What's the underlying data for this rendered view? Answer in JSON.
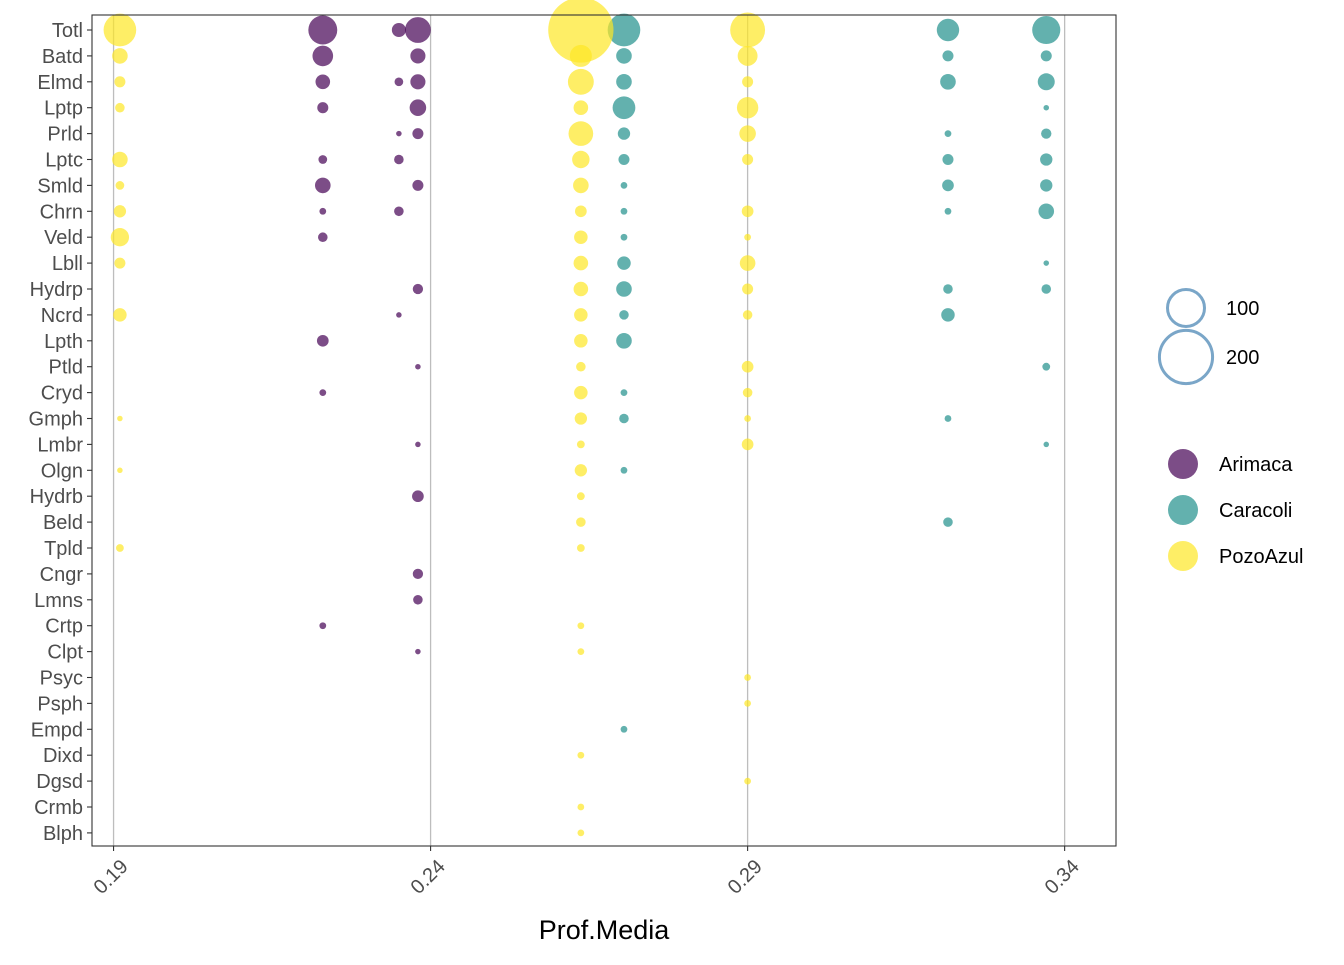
{
  "chart_data": {
    "type": "scatter",
    "title": "",
    "xlabel": "Prof.Media",
    "ylabel": "",
    "xlim": [
      0.1866,
      0.3481
    ],
    "x_ticks": [
      "0.19",
      "0.24",
      "0.29",
      "0.34"
    ],
    "x_tick_values": [
      0.19,
      0.24,
      0.29,
      0.34
    ],
    "grid": "major vertical only",
    "legend_position": "right",
    "categories": [
      "Totl",
      "Batd",
      "Elmd",
      "Lptp",
      "Prld",
      "Lptc",
      "Smld",
      "Chrn",
      "Veld",
      "Lbll",
      "Hydrp",
      "Ncrd",
      "Lpth",
      "Ptld",
      "Cryd",
      "Gmph",
      "Lmbr",
      "Olgn",
      "Hydrb",
      "Beld",
      "Tpld",
      "Cngr",
      "Lmns",
      "Crtp",
      "Clpt",
      "Psyc",
      "Psph",
      "Empd",
      "Dixd",
      "Dgsd",
      "Crmb",
      "Blph"
    ],
    "size_legend": {
      "labels": [
        "100",
        "200"
      ],
      "values": [
        100,
        200
      ],
      "color": "#7aa6c8"
    },
    "series": [
      {
        "name": "Arimaca",
        "color": "#440154",
        "points": [
          {
            "x": 0.223,
            "y": "Totl",
            "size": 55
          },
          {
            "x": 0.223,
            "y": "Batd",
            "size": 28
          },
          {
            "x": 0.223,
            "y": "Elmd",
            "size": 14
          },
          {
            "x": 0.223,
            "y": "Lptp",
            "size": 8
          },
          {
            "x": 0.223,
            "y": "Lptc",
            "size": 5
          },
          {
            "x": 0.223,
            "y": "Smld",
            "size": 16
          },
          {
            "x": 0.223,
            "y": "Chrn",
            "size": 3
          },
          {
            "x": 0.223,
            "y": "Veld",
            "size": 6
          },
          {
            "x": 0.223,
            "y": "Lpth",
            "size": 9
          },
          {
            "x": 0.223,
            "y": "Cryd",
            "size": 3
          },
          {
            "x": 0.223,
            "y": "Crtp",
            "size": 3
          },
          {
            "x": 0.235,
            "y": "Totl",
            "size": 13
          },
          {
            "x": 0.235,
            "y": "Elmd",
            "size": 5
          },
          {
            "x": 0.235,
            "y": "Prld",
            "size": 2
          },
          {
            "x": 0.235,
            "y": "Lptc",
            "size": 6
          },
          {
            "x": 0.235,
            "y": "Chrn",
            "size": 6
          },
          {
            "x": 0.235,
            "y": "Ncrd",
            "size": 2
          },
          {
            "x": 0.238,
            "y": "Totl",
            "size": 44
          },
          {
            "x": 0.238,
            "y": "Batd",
            "size": 15
          },
          {
            "x": 0.238,
            "y": "Elmd",
            "size": 15
          },
          {
            "x": 0.238,
            "y": "Lptp",
            "size": 18
          },
          {
            "x": 0.238,
            "y": "Prld",
            "size": 8
          },
          {
            "x": 0.238,
            "y": "Smld",
            "size": 8
          },
          {
            "x": 0.238,
            "y": "Hydrp",
            "size": 7
          },
          {
            "x": 0.238,
            "y": "Ptld",
            "size": 2
          },
          {
            "x": 0.238,
            "y": "Lmbr",
            "size": 2
          },
          {
            "x": 0.238,
            "y": "Hydrb",
            "size": 9
          },
          {
            "x": 0.238,
            "y": "Cngr",
            "size": 7
          },
          {
            "x": 0.238,
            "y": "Lmns",
            "size": 6
          },
          {
            "x": 0.238,
            "y": "Clpt",
            "size": 2
          }
        ]
      },
      {
        "name": "Caracoli",
        "color": "#21908c",
        "points": [
          {
            "x": 0.2705,
            "y": "Totl",
            "size": 70
          },
          {
            "x": 0.2705,
            "y": "Batd",
            "size": 16
          },
          {
            "x": 0.2705,
            "y": "Elmd",
            "size": 16
          },
          {
            "x": 0.2705,
            "y": "Lptp",
            "size": 34
          },
          {
            "x": 0.2705,
            "y": "Prld",
            "size": 10
          },
          {
            "x": 0.2705,
            "y": "Lptc",
            "size": 8
          },
          {
            "x": 0.2705,
            "y": "Smld",
            "size": 3
          },
          {
            "x": 0.2705,
            "y": "Chrn",
            "size": 3
          },
          {
            "x": 0.2705,
            "y": "Veld",
            "size": 3
          },
          {
            "x": 0.2705,
            "y": "Lbll",
            "size": 12
          },
          {
            "x": 0.2705,
            "y": "Hydrp",
            "size": 16
          },
          {
            "x": 0.2705,
            "y": "Ncrd",
            "size": 6
          },
          {
            "x": 0.2705,
            "y": "Lpth",
            "size": 16
          },
          {
            "x": 0.2705,
            "y": "Cryd",
            "size": 3
          },
          {
            "x": 0.2705,
            "y": "Gmph",
            "size": 6
          },
          {
            "x": 0.2705,
            "y": "Olgn",
            "size": 3
          },
          {
            "x": 0.2705,
            "y": "Empd",
            "size": 3
          },
          {
            "x": 0.3216,
            "y": "Totl",
            "size": 33
          },
          {
            "x": 0.3216,
            "y": "Batd",
            "size": 8
          },
          {
            "x": 0.3216,
            "y": "Elmd",
            "size": 16
          },
          {
            "x": 0.3216,
            "y": "Prld",
            "size": 3
          },
          {
            "x": 0.3216,
            "y": "Lptc",
            "size": 8
          },
          {
            "x": 0.3216,
            "y": "Smld",
            "size": 9
          },
          {
            "x": 0.3216,
            "y": "Chrn",
            "size": 3
          },
          {
            "x": 0.3216,
            "y": "Hydrp",
            "size": 6
          },
          {
            "x": 0.3216,
            "y": "Ncrd",
            "size": 12
          },
          {
            "x": 0.3216,
            "y": "Gmph",
            "size": 3
          },
          {
            "x": 0.3216,
            "y": "Beld",
            "size": 6
          },
          {
            "x": 0.3371,
            "y": "Totl",
            "size": 52
          },
          {
            "x": 0.3371,
            "y": "Batd",
            "size": 8
          },
          {
            "x": 0.3371,
            "y": "Elmd",
            "size": 19
          },
          {
            "x": 0.3371,
            "y": "Lptp",
            "size": 2
          },
          {
            "x": 0.3371,
            "y": "Prld",
            "size": 7
          },
          {
            "x": 0.3371,
            "y": "Lptc",
            "size": 10
          },
          {
            "x": 0.3371,
            "y": "Smld",
            "size": 10
          },
          {
            "x": 0.3371,
            "y": "Chrn",
            "size": 16
          },
          {
            "x": 0.3371,
            "y": "Lbll",
            "size": 2
          },
          {
            "x": 0.3371,
            "y": "Hydrp",
            "size": 6
          },
          {
            "x": 0.3371,
            "y": "Ptld",
            "size": 4
          },
          {
            "x": 0.3371,
            "y": "Lmbr",
            "size": 2
          }
        ]
      },
      {
        "name": "PozoAzul",
        "color": "#fde725",
        "points": [
          {
            "x": 0.191,
            "y": "Totl",
            "size": 70
          },
          {
            "x": 0.191,
            "y": "Batd",
            "size": 16
          },
          {
            "x": 0.191,
            "y": "Elmd",
            "size": 8
          },
          {
            "x": 0.191,
            "y": "Lptp",
            "size": 6
          },
          {
            "x": 0.191,
            "y": "Lptc",
            "size": 16
          },
          {
            "x": 0.191,
            "y": "Smld",
            "size": 5
          },
          {
            "x": 0.191,
            "y": "Chrn",
            "size": 10
          },
          {
            "x": 0.191,
            "y": "Veld",
            "size": 22
          },
          {
            "x": 0.191,
            "y": "Lbll",
            "size": 8
          },
          {
            "x": 0.191,
            "y": "Ncrd",
            "size": 12
          },
          {
            "x": 0.191,
            "y": "Gmph",
            "size": 2
          },
          {
            "x": 0.191,
            "y": "Olgn",
            "size": 2
          },
          {
            "x": 0.191,
            "y": "Tpld",
            "size": 4
          },
          {
            "x": 0.2637,
            "y": "Totl",
            "size": 280
          },
          {
            "x": 0.2637,
            "y": "Batd",
            "size": 32
          },
          {
            "x": 0.2637,
            "y": "Elmd",
            "size": 44
          },
          {
            "x": 0.2637,
            "y": "Lptp",
            "size": 14
          },
          {
            "x": 0.2637,
            "y": "Prld",
            "size": 40
          },
          {
            "x": 0.2637,
            "y": "Lptc",
            "size": 20
          },
          {
            "x": 0.2637,
            "y": "Smld",
            "size": 16
          },
          {
            "x": 0.2637,
            "y": "Chrn",
            "size": 9
          },
          {
            "x": 0.2637,
            "y": "Veld",
            "size": 12
          },
          {
            "x": 0.2637,
            "y": "Lbll",
            "size": 14
          },
          {
            "x": 0.2637,
            "y": "Hydrp",
            "size": 14
          },
          {
            "x": 0.2637,
            "y": "Ncrd",
            "size": 12
          },
          {
            "x": 0.2637,
            "y": "Lpth",
            "size": 12
          },
          {
            "x": 0.2637,
            "y": "Ptld",
            "size": 6
          },
          {
            "x": 0.2637,
            "y": "Cryd",
            "size": 12
          },
          {
            "x": 0.2637,
            "y": "Gmph",
            "size": 10
          },
          {
            "x": 0.2637,
            "y": "Lmbr",
            "size": 4
          },
          {
            "x": 0.2637,
            "y": "Olgn",
            "size": 10
          },
          {
            "x": 0.2637,
            "y": "Hydrb",
            "size": 4
          },
          {
            "x": 0.2637,
            "y": "Beld",
            "size": 6
          },
          {
            "x": 0.2637,
            "y": "Tpld",
            "size": 4
          },
          {
            "x": 0.2637,
            "y": "Crtp",
            "size": 3
          },
          {
            "x": 0.2637,
            "y": "Clpt",
            "size": 3
          },
          {
            "x": 0.2637,
            "y": "Dixd",
            "size": 3
          },
          {
            "x": 0.2637,
            "y": "Crmb",
            "size": 3
          },
          {
            "x": 0.2637,
            "y": "Blph",
            "size": 3
          },
          {
            "x": 0.29,
            "y": "Totl",
            "size": 80
          },
          {
            "x": 0.29,
            "y": "Batd",
            "size": 26
          },
          {
            "x": 0.29,
            "y": "Elmd",
            "size": 8
          },
          {
            "x": 0.29,
            "y": "Lptp",
            "size": 30
          },
          {
            "x": 0.29,
            "y": "Prld",
            "size": 18
          },
          {
            "x": 0.29,
            "y": "Lptc",
            "size": 8
          },
          {
            "x": 0.29,
            "y": "Chrn",
            "size": 9
          },
          {
            "x": 0.29,
            "y": "Veld",
            "size": 3
          },
          {
            "x": 0.29,
            "y": "Lbll",
            "size": 16
          },
          {
            "x": 0.29,
            "y": "Hydrp",
            "size": 8
          },
          {
            "x": 0.29,
            "y": "Ncrd",
            "size": 6
          },
          {
            "x": 0.29,
            "y": "Ptld",
            "size": 9
          },
          {
            "x": 0.29,
            "y": "Cryd",
            "size": 6
          },
          {
            "x": 0.29,
            "y": "Gmph",
            "size": 3
          },
          {
            "x": 0.29,
            "y": "Lmbr",
            "size": 9
          },
          {
            "x": 0.29,
            "y": "Psyc",
            "size": 3
          },
          {
            "x": 0.29,
            "y": "Psph",
            "size": 3
          },
          {
            "x": 0.29,
            "y": "Dgsd",
            "size": 3
          }
        ]
      }
    ]
  }
}
